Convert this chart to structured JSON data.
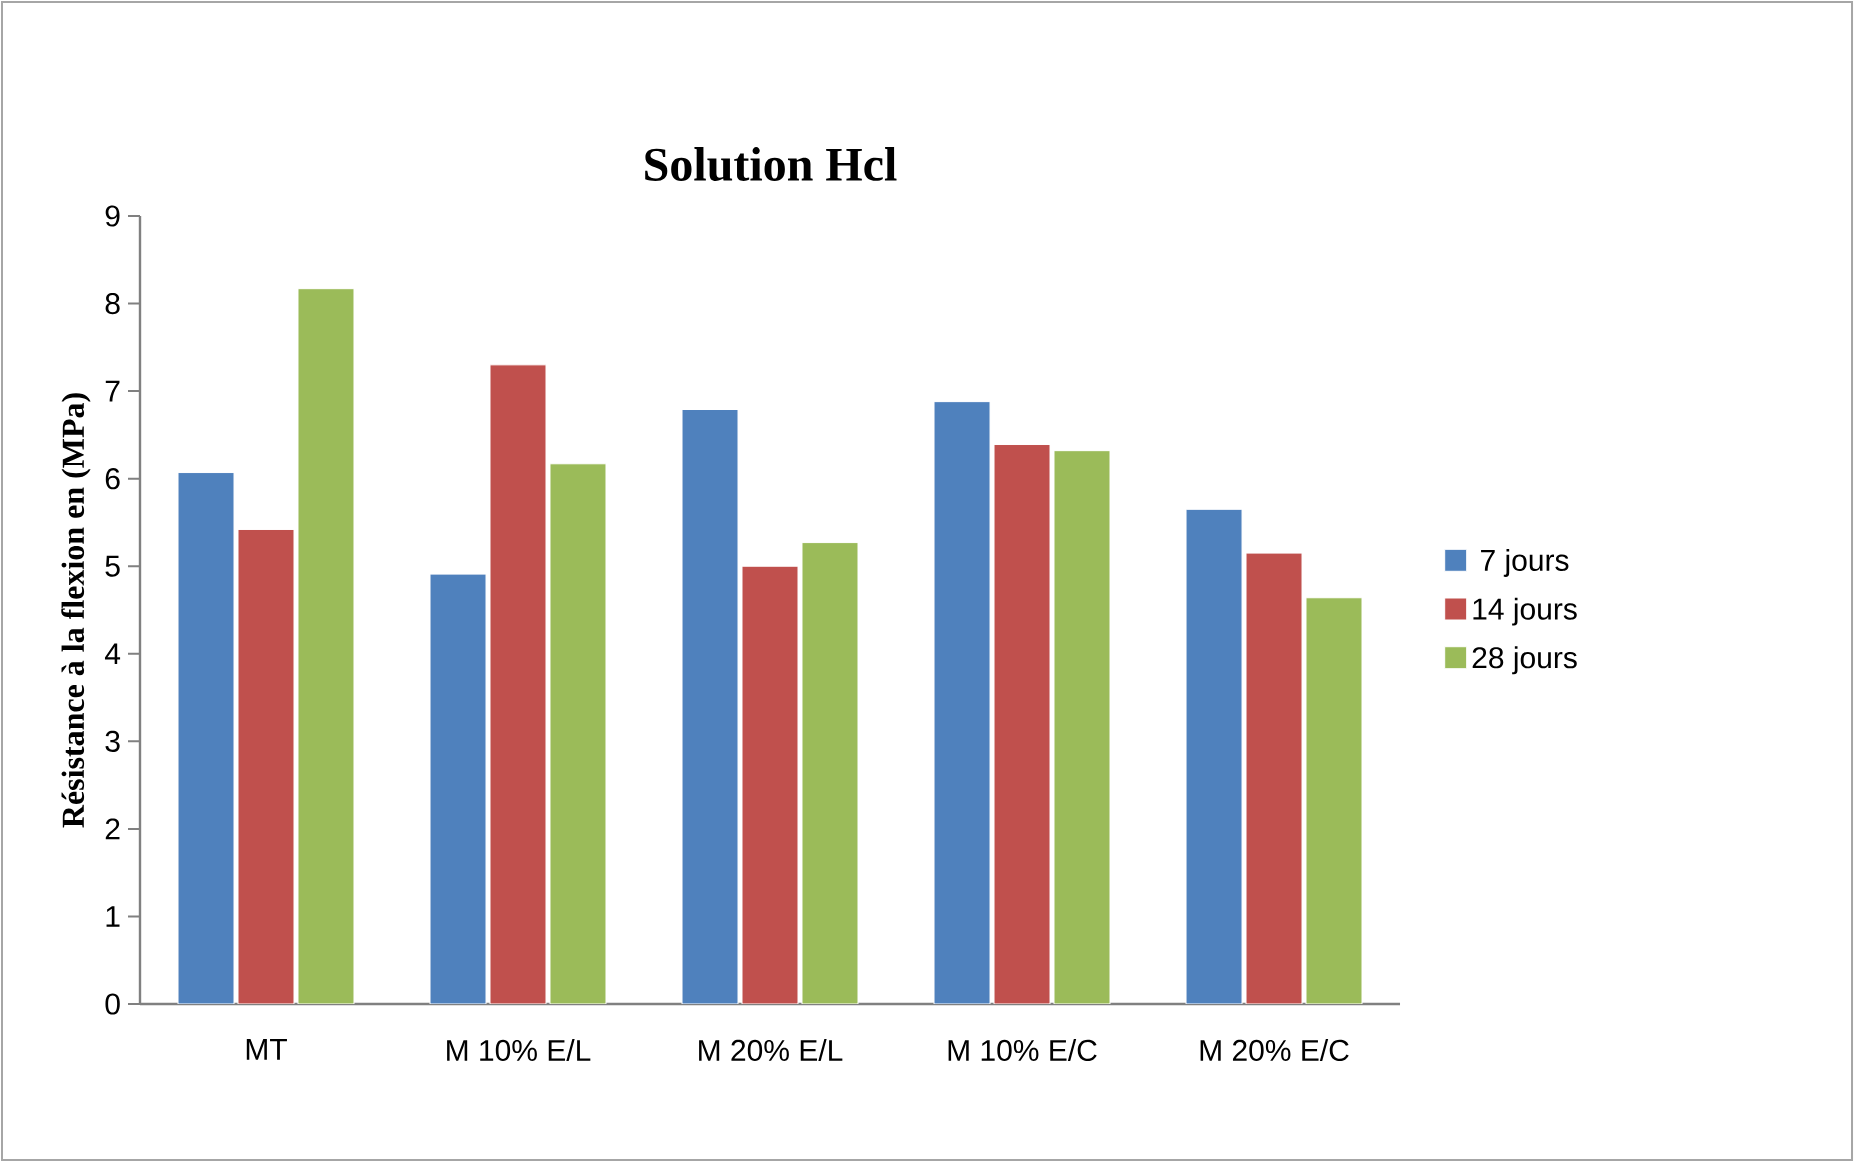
{
  "chart_data": {
    "type": "bar",
    "title": "Solution Hcl",
    "ylabel": "Résistance à la flexion en (MPa)",
    "categories": [
      "MT",
      "M 10% E/L",
      "M 20% E/L",
      "M 10% E/C",
      "M 20% E/C"
    ],
    "series": [
      {
        "name": "7 jours",
        "color": "#4f81bd",
        "values": [
          6.07,
          4.91,
          6.79,
          6.88,
          5.65
        ]
      },
      {
        "name": "14 jours",
        "color": "#c0504d",
        "values": [
          5.42,
          7.3,
          5.0,
          6.39,
          5.15
        ]
      },
      {
        "name": "28 jours",
        "color": "#9bbb59",
        "values": [
          8.17,
          6.17,
          5.27,
          6.32,
          4.64
        ]
      }
    ],
    "ylim": [
      0,
      9
    ],
    "yticks": [
      0,
      1,
      2,
      3,
      4,
      5,
      6,
      7,
      8,
      9
    ],
    "grid": false,
    "legend": "right"
  }
}
